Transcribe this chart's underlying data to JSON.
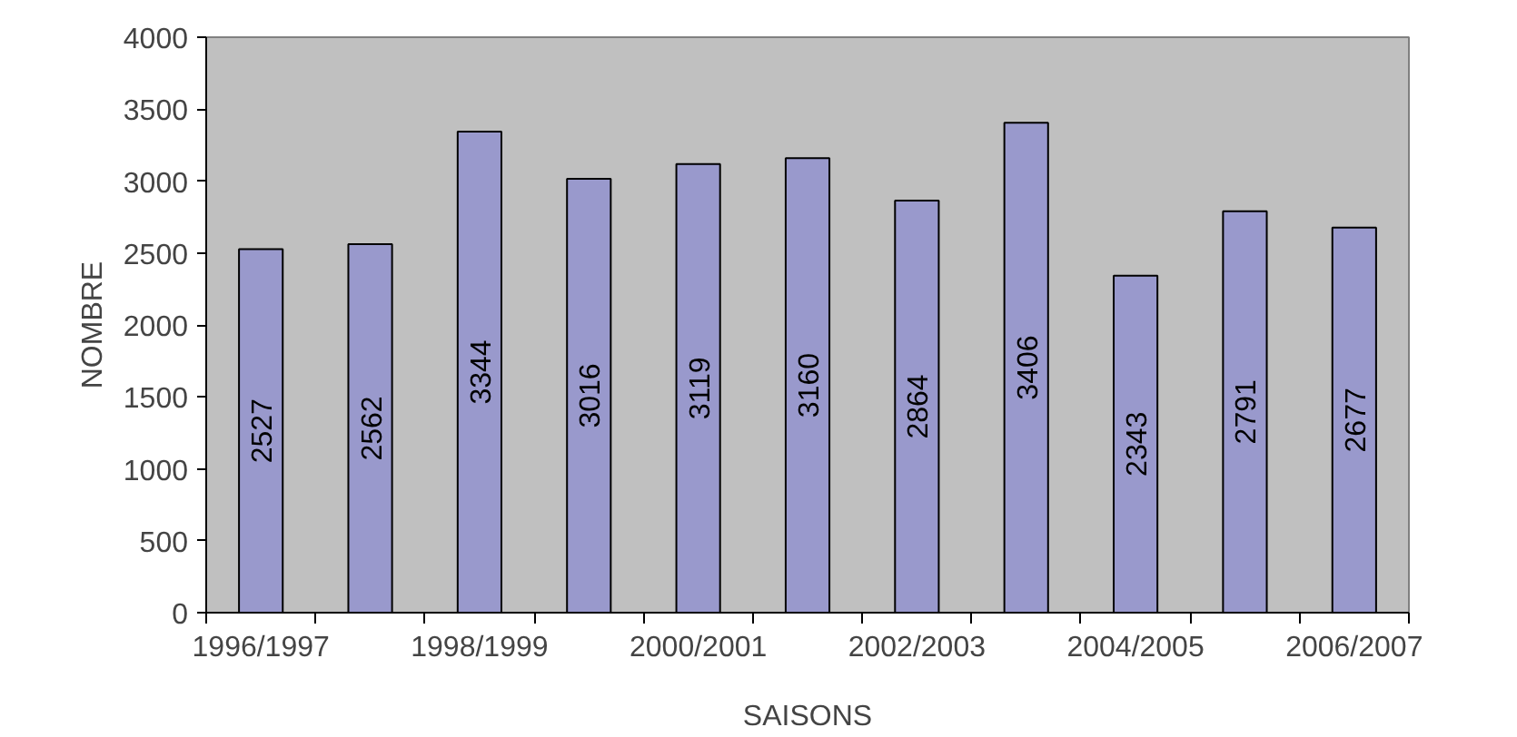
{
  "chart_data": {
    "type": "bar",
    "xlabel": "SAISONS",
    "ylabel": "NOMBRE",
    "categories": [
      "1996/1997",
      null,
      "1998/1999",
      null,
      "2000/2001",
      null,
      "2002/2003",
      null,
      "2004/2005",
      null,
      "2006/2007"
    ],
    "values": [
      2527,
      2562,
      3344,
      3016,
      3119,
      3160,
      2864,
      3406,
      2343,
      2791,
      2677
    ],
    "color": "#9999cc",
    "ylim": [
      0,
      4000
    ],
    "yticks": [
      0,
      500,
      1000,
      1500,
      2000,
      2500,
      3000,
      3500,
      4000
    ],
    "data_labels": true,
    "grid": false
  }
}
